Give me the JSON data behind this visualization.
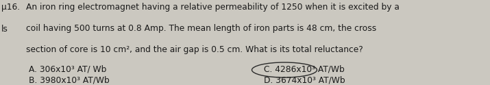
{
  "bg_color": "#cbc8c0",
  "text_color": "#1a1a1a",
  "qnum": "μ16.",
  "prefix": "ls",
  "line1": "An iron ring electromagnet having a relative permeability of 1250 when it is excited by a",
  "line2": "coil having 500 turns at 0.8 Amp. The mean length of iron parts is 48 cm, the cross",
  "line3": "section of core is 10 cm², and the air gap is 0.5 cm. What is its total reluctance?",
  "optA": "A. 306x10³ AT/ Wb",
  "optB": "B. 3980x10³ AT/Wb",
  "optC": "C. 4286x10³ AT/Wb",
  "optD": "D. 3674x10³ AT/Wb",
  "font_size": 8.8,
  "fig_width": 7.15,
  "fig_height": 1.24,
  "dpi": 100
}
